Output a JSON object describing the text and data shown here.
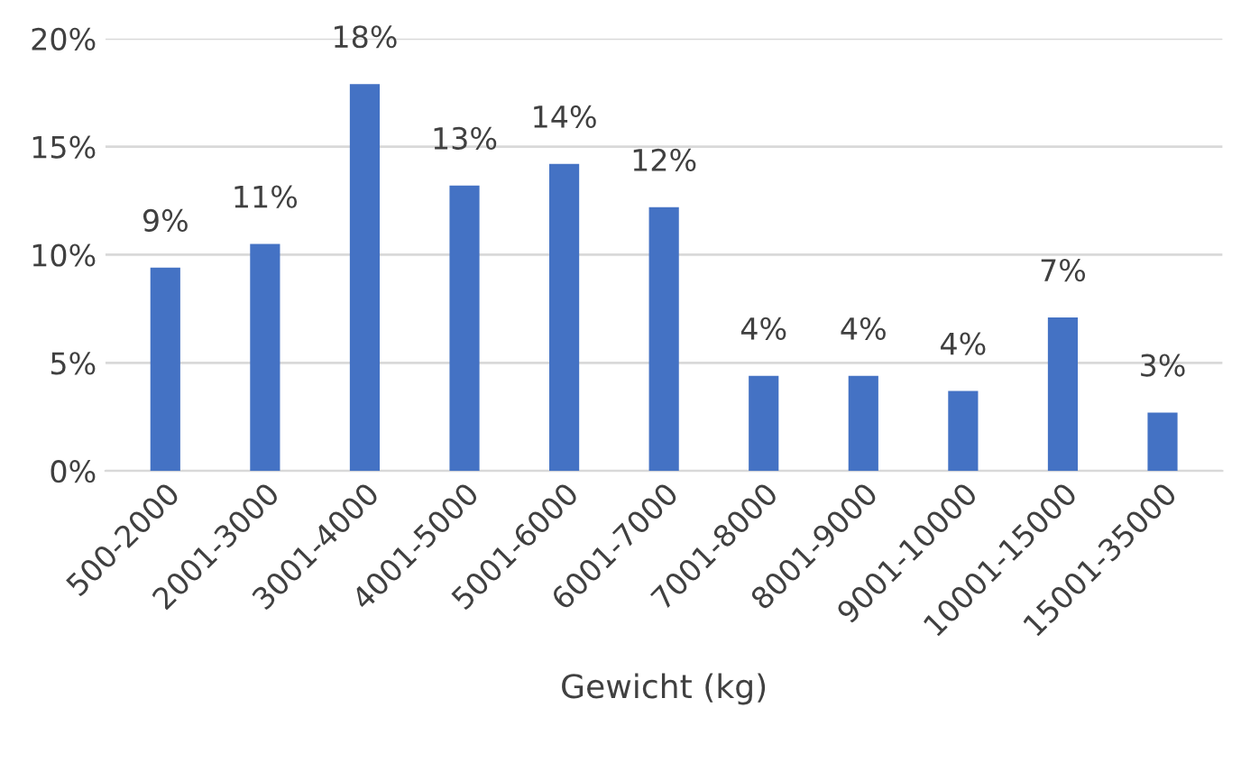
{
  "chart_data": {
    "type": "bar",
    "xlabel": "Gewicht (kg)",
    "categories": [
      "500-2000",
      "2001-3000",
      "3001-4000",
      "4001-5000",
      "5001-6000",
      "6001-7000",
      "7001-8000",
      "8001-9000",
      "9001-10000",
      "10001-15000",
      "15001-35000"
    ],
    "values": [
      9.4,
      10.5,
      17.9,
      13.2,
      14.2,
      12.2,
      4.4,
      4.4,
      3.7,
      7.1,
      2.7
    ],
    "value_labels": [
      "9%",
      "11%",
      "18%",
      "13%",
      "14%",
      "12%",
      "4%",
      "4%",
      "4%",
      "7%",
      "3%"
    ],
    "color": "#4472c4",
    "ylim": [
      0,
      20
    ],
    "yticks": [
      {
        "value": 0,
        "label": "0%"
      },
      {
        "value": 5,
        "label": "5%"
      },
      {
        "value": 10,
        "label": "10%"
      },
      {
        "value": 15,
        "label": "15%"
      },
      {
        "value": 20,
        "label": "20%"
      }
    ],
    "grid": "y"
  }
}
